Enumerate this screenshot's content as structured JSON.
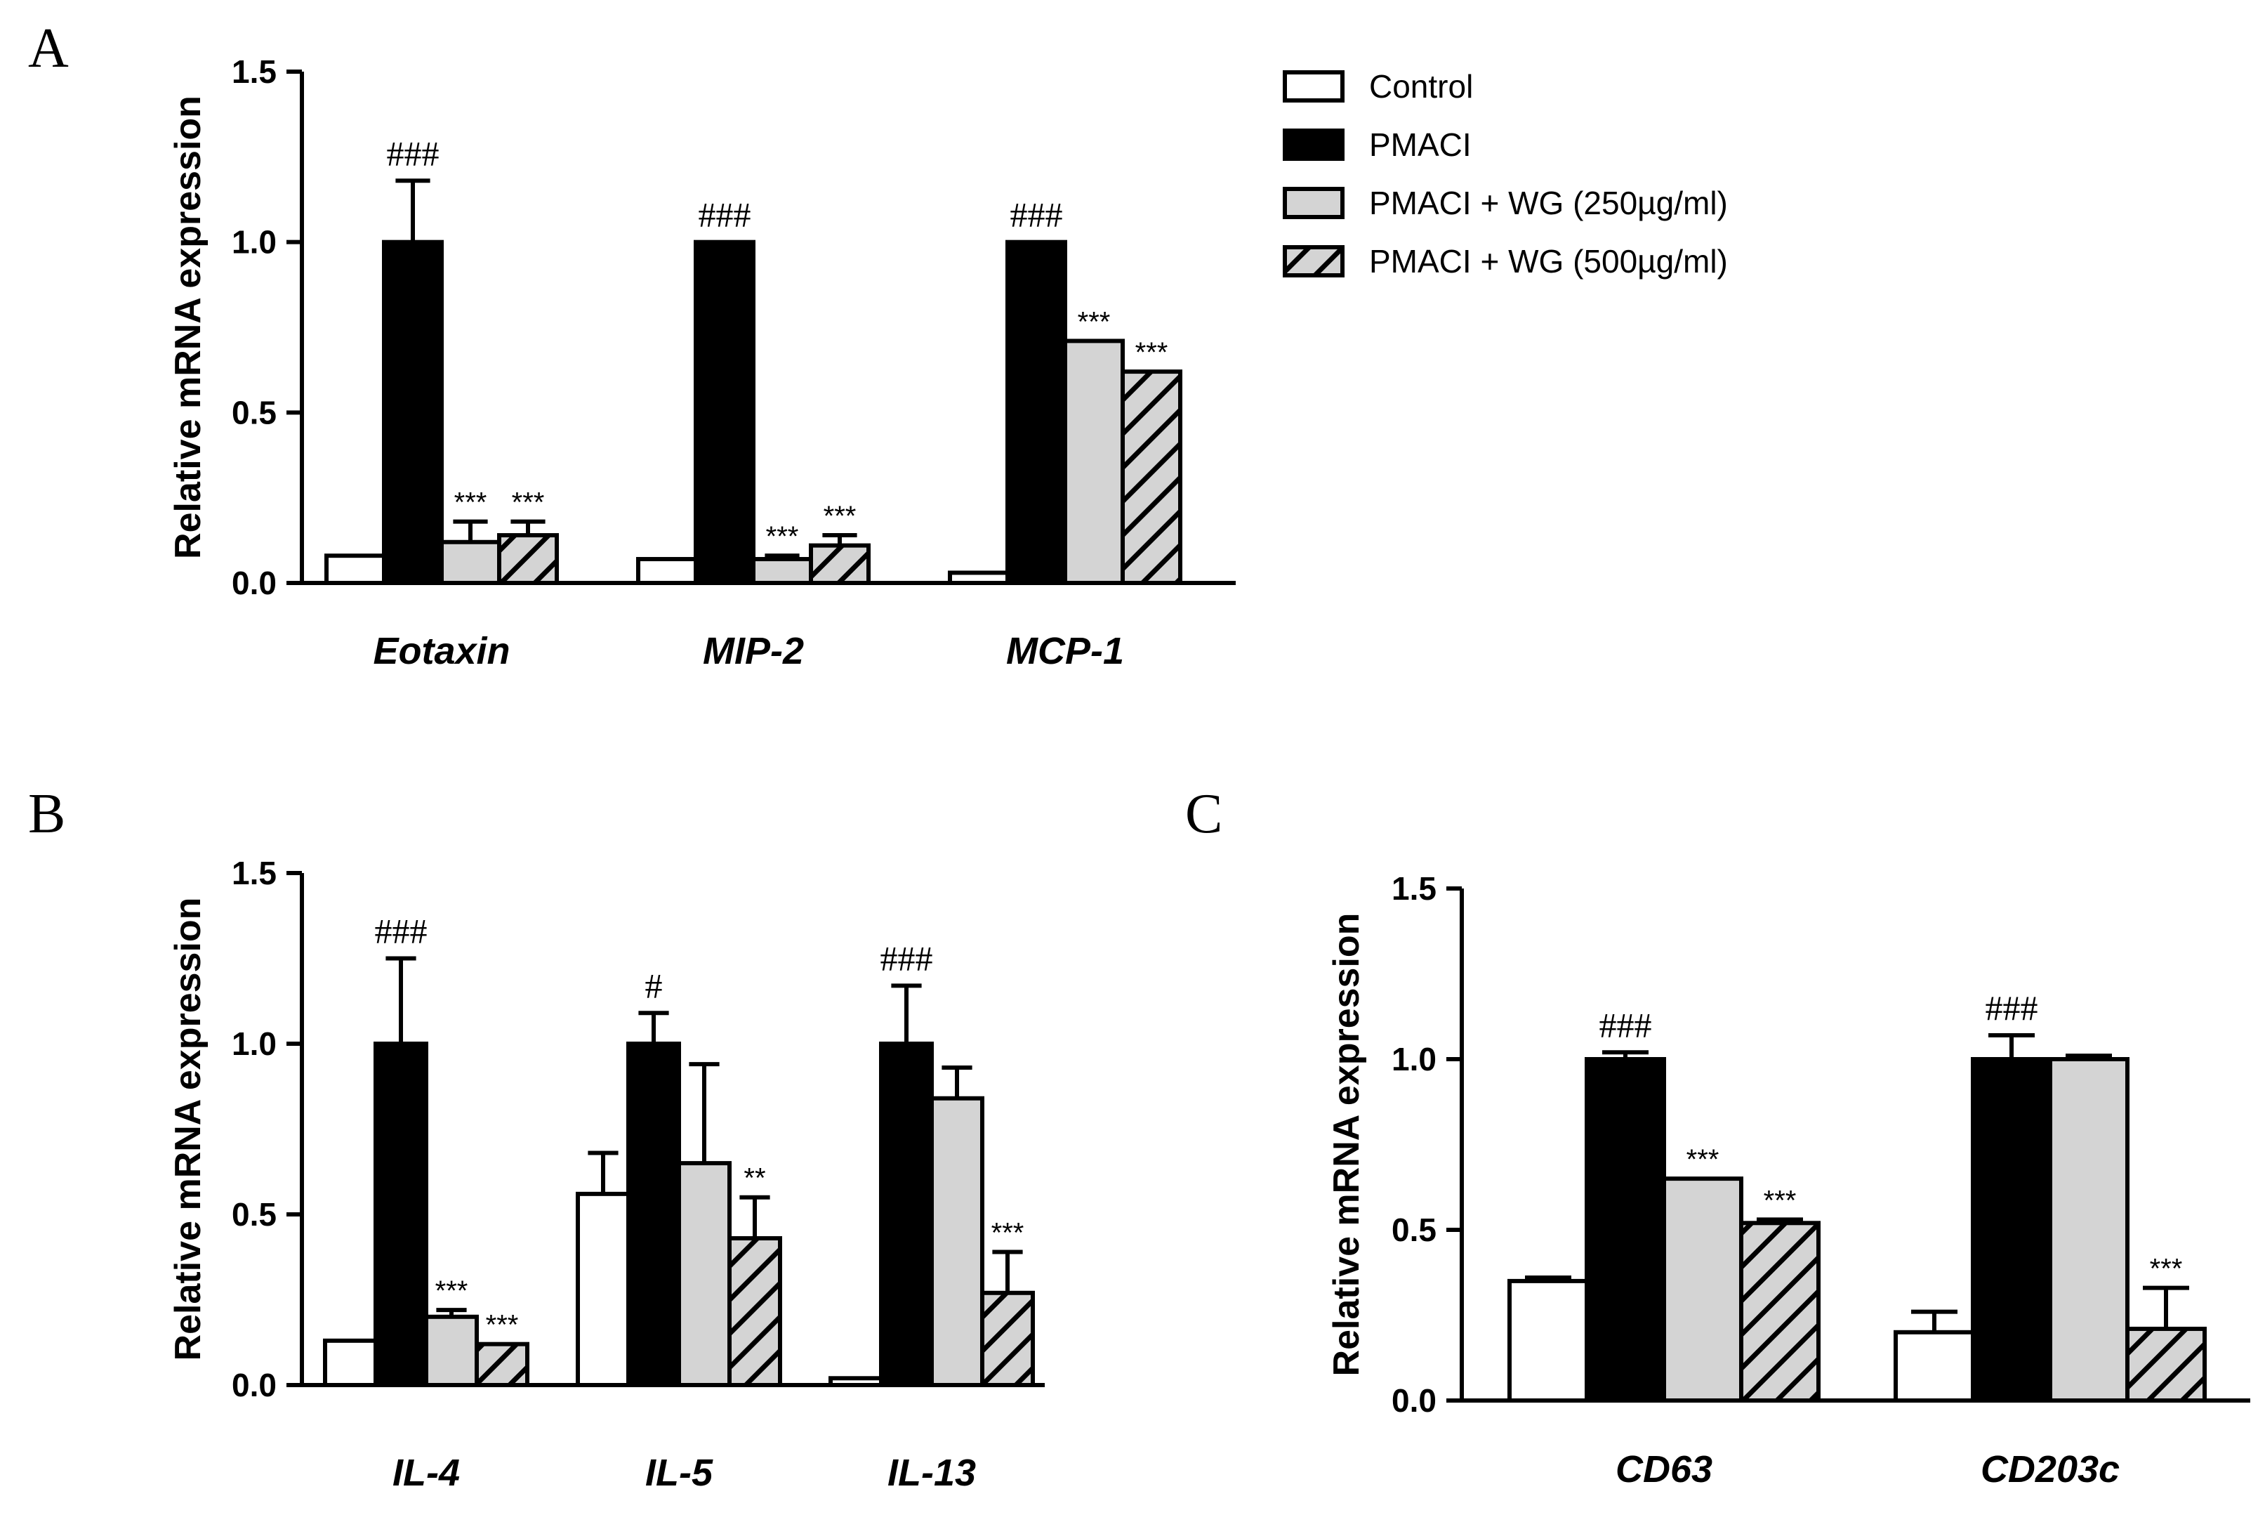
{
  "legend": [
    {
      "label": "Control",
      "style": "white"
    },
    {
      "label": "PMACI",
      "style": "black"
    },
    {
      "label": "PMACI + WG (250µg/ml)",
      "style": "gray"
    },
    {
      "label": "PMACI + WG (500µg/ml)",
      "style": "hatch"
    }
  ],
  "colors": {
    "white": "#ffffff",
    "black": "#000000",
    "gray": "#d4d4d4",
    "hatch": "#d4d4d4"
  },
  "chart_data": [
    {
      "panel": "A",
      "type": "bar",
      "ylabel": "Relative mRNA expression",
      "ylim": [
        0,
        1.5
      ],
      "yticks": [
        "0.0",
        "0.5",
        "1.0",
        "1.5"
      ],
      "categories": [
        "Eotaxin",
        "MIP-2",
        "MCP-1"
      ],
      "series": [
        {
          "name": "Control",
          "values": [
            0.08,
            0.07,
            0.03
          ],
          "errors": [
            0,
            0,
            0
          ],
          "annotations": [
            "",
            "",
            ""
          ]
        },
        {
          "name": "PMACI",
          "values": [
            1.0,
            1.0,
            1.0
          ],
          "errors": [
            0.18,
            0,
            0
          ],
          "annotations": [
            "###",
            "###",
            "###"
          ]
        },
        {
          "name": "PMACI + WG (250µg/ml)",
          "values": [
            0.12,
            0.07,
            0.71
          ],
          "errors": [
            0.06,
            0.01,
            0
          ],
          "annotations": [
            "***",
            "***",
            "***"
          ]
        },
        {
          "name": "PMACI + WG (500µg/ml)",
          "values": [
            0.14,
            0.11,
            0.62
          ],
          "errors": [
            0.04,
            0.03,
            0
          ],
          "annotations": [
            "***",
            "***",
            "***"
          ]
        }
      ]
    },
    {
      "panel": "B",
      "type": "bar",
      "ylabel": "Relative mRNA expression",
      "ylim": [
        0,
        1.5
      ],
      "yticks": [
        "0.0",
        "0.5",
        "1.0",
        "1.5"
      ],
      "categories": [
        "IL-4",
        "IL-5",
        "IL-13"
      ],
      "series": [
        {
          "name": "Control",
          "values": [
            0.13,
            0.56,
            0.02
          ],
          "errors": [
            0,
            0.12,
            0
          ],
          "annotations": [
            "",
            "",
            ""
          ]
        },
        {
          "name": "PMACI",
          "values": [
            1.0,
            1.0,
            1.0
          ],
          "errors": [
            0.25,
            0.09,
            0.17
          ],
          "annotations": [
            "###",
            "#",
            "###"
          ]
        },
        {
          "name": "PMACI + WG (250µg/ml)",
          "values": [
            0.2,
            0.65,
            0.84
          ],
          "errors": [
            0.02,
            0.29,
            0.09
          ],
          "annotations": [
            "***",
            "",
            ""
          ]
        },
        {
          "name": "PMACI + WG (500µg/ml)",
          "values": [
            0.12,
            0.43,
            0.27
          ],
          "errors": [
            0,
            0.12,
            0.12
          ],
          "annotations": [
            "***",
            "**",
            "***"
          ]
        }
      ]
    },
    {
      "panel": "C",
      "type": "bar",
      "ylabel": "Relative mRNA expression",
      "ylim": [
        0,
        1.5
      ],
      "yticks": [
        "0.0",
        "0.5",
        "1.0",
        "1.5"
      ],
      "categories": [
        "CD63",
        "CD203c"
      ],
      "series": [
        {
          "name": "Control",
          "values": [
            0.35,
            0.2
          ],
          "errors": [
            0.01,
            0.06
          ],
          "annotations": [
            "",
            ""
          ]
        },
        {
          "name": "PMACI",
          "values": [
            1.0,
            1.0
          ],
          "errors": [
            0.02,
            0.07
          ],
          "annotations": [
            "###",
            "###"
          ]
        },
        {
          "name": "PMACI + WG (250µg/ml)",
          "values": [
            0.65,
            1.0
          ],
          "errors": [
            0,
            0.01
          ],
          "annotations": [
            "***",
            ""
          ]
        },
        {
          "name": "PMACI + WG (500µg/ml)",
          "values": [
            0.52,
            0.21
          ],
          "errors": [
            0.01,
            0.12
          ],
          "annotations": [
            "***",
            "***"
          ]
        }
      ]
    }
  ]
}
